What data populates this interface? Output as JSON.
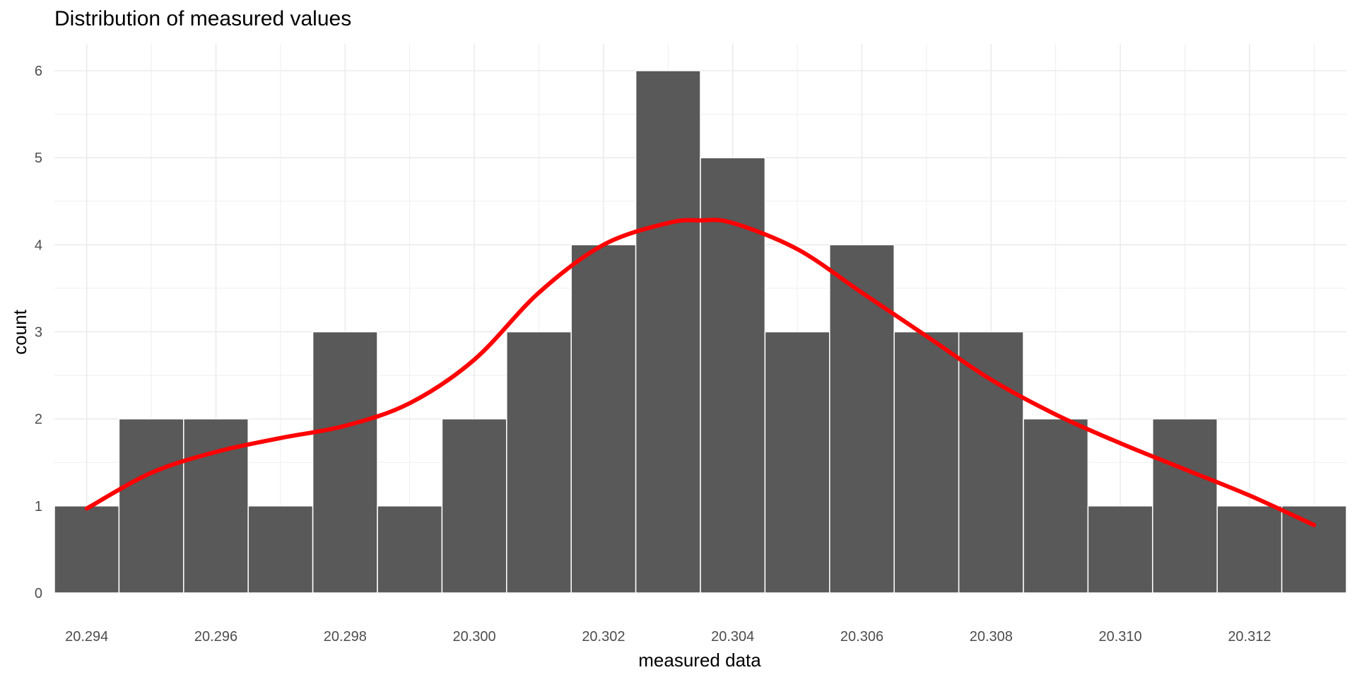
{
  "chart_data": {
    "type": "bar",
    "title": "Distribution of measured values",
    "xlabel": "measured data",
    "ylabel": "count",
    "bin_width": 0.001,
    "bins": [
      {
        "center": 20.294,
        "count": 1
      },
      {
        "center": 20.295,
        "count": 2
      },
      {
        "center": 20.296,
        "count": 2
      },
      {
        "center": 20.297,
        "count": 1
      },
      {
        "center": 20.298,
        "count": 3
      },
      {
        "center": 20.299,
        "count": 1
      },
      {
        "center": 20.3,
        "count": 2
      },
      {
        "center": 20.301,
        "count": 3
      },
      {
        "center": 20.302,
        "count": 4
      },
      {
        "center": 20.303,
        "count": 6
      },
      {
        "center": 20.304,
        "count": 5
      },
      {
        "center": 20.305,
        "count": 3
      },
      {
        "center": 20.306,
        "count": 4
      },
      {
        "center": 20.307,
        "count": 3
      },
      {
        "center": 20.308,
        "count": 3
      },
      {
        "center": 20.309,
        "count": 2
      },
      {
        "center": 20.31,
        "count": 1
      },
      {
        "center": 20.311,
        "count": 2
      },
      {
        "center": 20.312,
        "count": 1
      },
      {
        "center": 20.313,
        "count": 1
      }
    ],
    "density_curve": {
      "x": [
        20.294,
        20.295,
        20.296,
        20.297,
        20.298,
        20.299,
        20.3,
        20.301,
        20.302,
        20.303,
        20.3035,
        20.304,
        20.305,
        20.306,
        20.307,
        20.308,
        20.309,
        20.31,
        20.311,
        20.312,
        20.313
      ],
      "y": [
        0.97,
        1.38,
        1.62,
        1.78,
        1.92,
        2.18,
        2.68,
        3.45,
        4.0,
        4.25,
        4.28,
        4.25,
        3.95,
        3.45,
        2.95,
        2.45,
        2.05,
        1.72,
        1.42,
        1.12,
        0.78
      ]
    },
    "xlim": [
      20.2935,
      20.3135
    ],
    "ylim": [
      0,
      6.0
    ],
    "x_ticks": [
      "20.294",
      "20.296",
      "20.298",
      "20.300",
      "20.302",
      "20.304",
      "20.306",
      "20.308",
      "20.310",
      "20.312"
    ],
    "y_ticks": [
      "0",
      "1",
      "2",
      "3",
      "4",
      "5",
      "6"
    ],
    "grid": true,
    "colors": {
      "bar_fill": "#595959",
      "bar_stroke": "#ffffff",
      "curve": "#ff0000",
      "grid": "#ebebeb"
    }
  }
}
